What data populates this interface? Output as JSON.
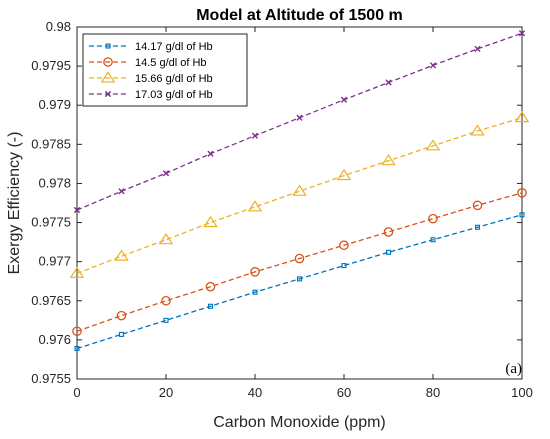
{
  "chart_data": {
    "type": "line",
    "title": "Model at Altitude of 1500 m",
    "xlabel": "Carbon Monoxide (ppm)",
    "ylabel": "Exergy Efficiency (-)",
    "annotation": "(a)",
    "xlim": [
      0,
      100
    ],
    "ylim": [
      0.9755,
      0.98
    ],
    "x_ticks": [
      0,
      20,
      40,
      60,
      80,
      100
    ],
    "y_ticks": [
      0.9755,
      0.976,
      0.9765,
      0.977,
      0.9775,
      0.978,
      0.9785,
      0.979,
      0.9795,
      0.98
    ],
    "x_tick_labels": [
      "0",
      "20",
      "40",
      "60",
      "80",
      "100"
    ],
    "y_tick_labels": [
      "0.9755",
      "0.976",
      "0.9765",
      "0.977",
      "0.9775",
      "0.978",
      "0.9785",
      "0.979",
      "0.9795",
      "0.98"
    ],
    "grid": false,
    "legend_position": "top-left",
    "x": [
      0,
      10,
      20,
      30,
      40,
      50,
      60,
      70,
      80,
      90,
      100
    ],
    "series": [
      {
        "name": "14.17 g/dl of Hb",
        "color": "#0072BD",
        "marker": "square",
        "values": [
          0.97589,
          0.97607,
          0.97625,
          0.97643,
          0.97661,
          0.97678,
          0.97695,
          0.97712,
          0.97728,
          0.97744,
          0.9776
        ]
      },
      {
        "name": "14.5 g/dl of Hb",
        "color": "#D95319",
        "marker": "circle",
        "values": [
          0.97611,
          0.97631,
          0.9765,
          0.97668,
          0.97687,
          0.97704,
          0.97721,
          0.97738,
          0.97755,
          0.97772,
          0.97788
        ]
      },
      {
        "name": "15.66 g/dl of Hb",
        "color": "#EDB120",
        "marker": "triangle",
        "values": [
          0.97685,
          0.97707,
          0.97728,
          0.9775,
          0.9777,
          0.9779,
          0.9781,
          0.97829,
          0.97848,
          0.97867,
          0.97884
        ]
      },
      {
        "name": "17.03 g/dl of Hb",
        "color": "#7E2F8E",
        "marker": "x",
        "values": [
          0.97766,
          0.9779,
          0.97813,
          0.97838,
          0.97861,
          0.97884,
          0.97907,
          0.97929,
          0.97951,
          0.97972,
          0.97992
        ]
      }
    ]
  }
}
